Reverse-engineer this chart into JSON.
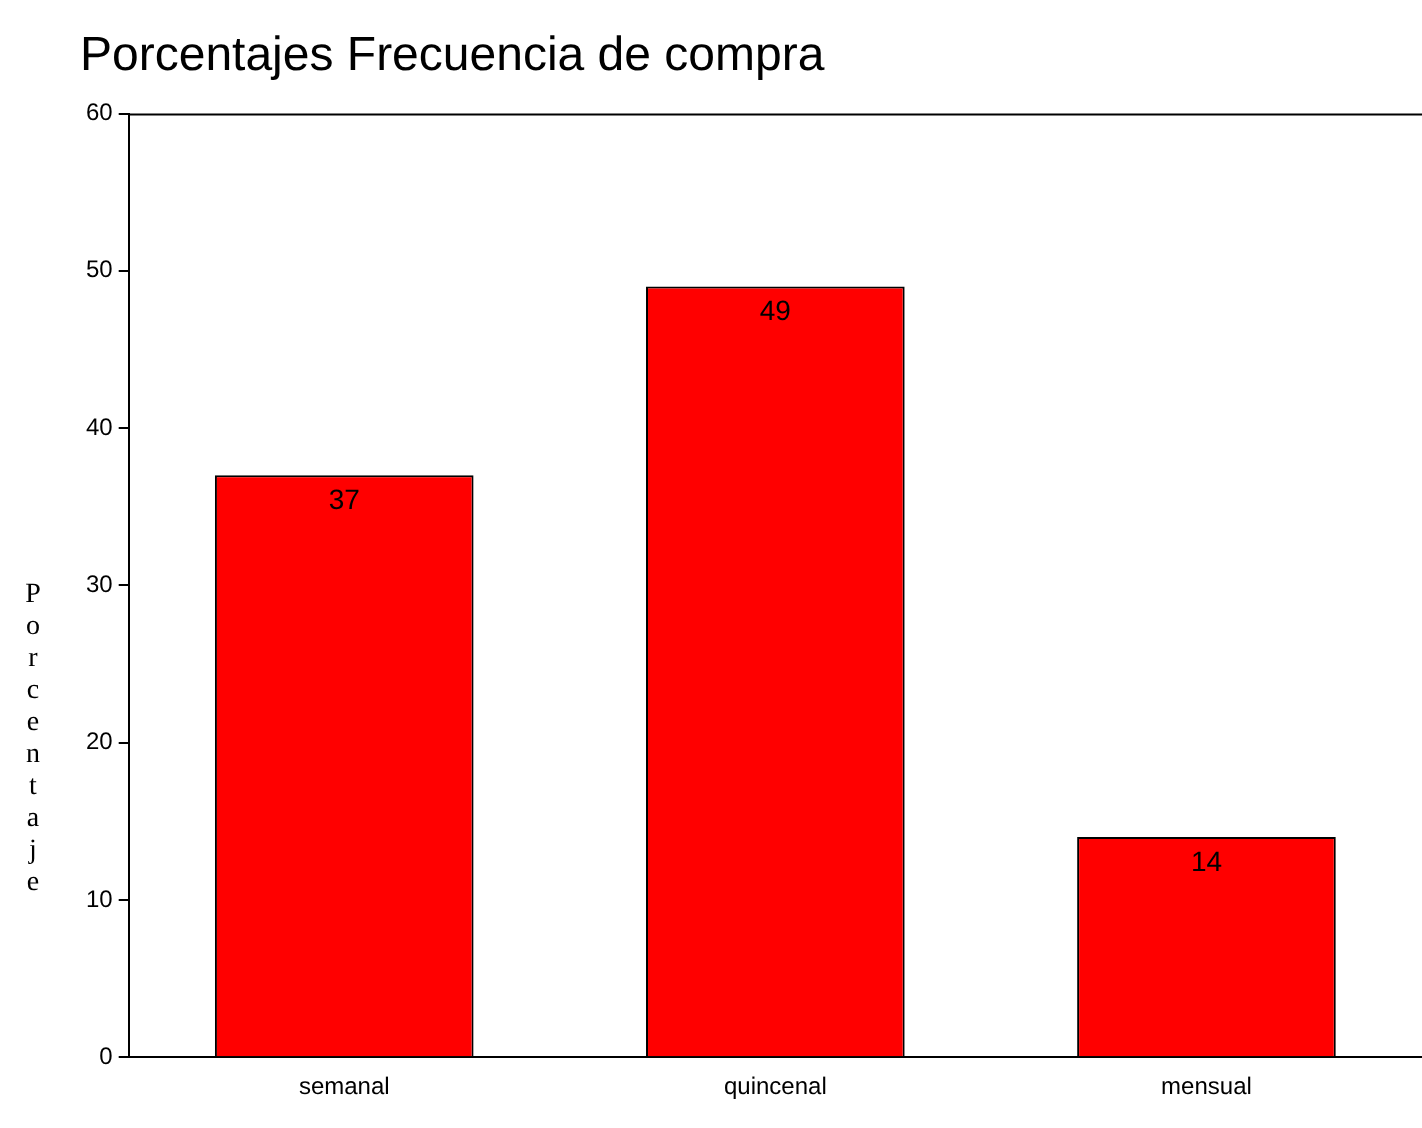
{
  "chart_data": {
    "type": "bar",
    "title": "Porcentajes Frecuencia de compra",
    "ylabel": "Porcentaje",
    "categories": [
      "semanal",
      "quincenal",
      "mensual"
    ],
    "values": [
      37,
      49,
      14
    ],
    "color": "#ff0000",
    "ylim": [
      0,
      60
    ],
    "yticks": [
      0,
      10,
      20,
      30,
      40,
      50,
      60
    ],
    "grid": false,
    "data_labels": true
  }
}
